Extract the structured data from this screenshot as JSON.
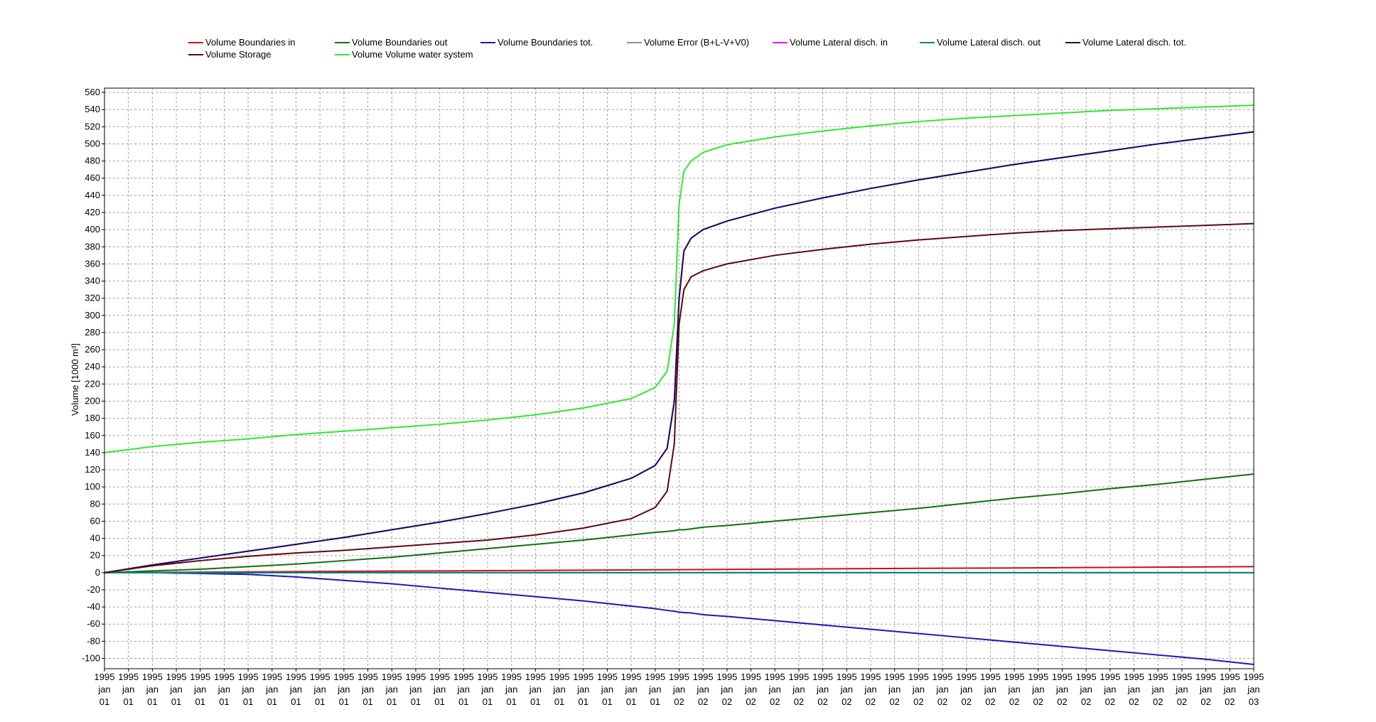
{
  "chart_data": {
    "type": "line",
    "ylabel": "Volume [1000 m³]",
    "grid": true,
    "legend": "top",
    "x": [
      0,
      2,
      4,
      6,
      8,
      10,
      12,
      14,
      16,
      18,
      20,
      22,
      23,
      23.5,
      23.8,
      24,
      24.2,
      24.5,
      25,
      26,
      28,
      30,
      32,
      34,
      36,
      38,
      40,
      42,
      44,
      46,
      48
    ],
    "xlim": [
      0,
      48
    ],
    "xticks": [
      {
        "value": 0,
        "label": [
          "1995",
          "jan",
          "01"
        ]
      },
      {
        "value": 1,
        "label": [
          "1995",
          "jan",
          "01"
        ]
      },
      {
        "value": 2,
        "label": [
          "1995",
          "jan",
          "01"
        ]
      },
      {
        "value": 3,
        "label": [
          "1995",
          "jan",
          "01"
        ]
      },
      {
        "value": 4,
        "label": [
          "1995",
          "jan",
          "01"
        ]
      },
      {
        "value": 5,
        "label": [
          "1995",
          "jan",
          "01"
        ]
      },
      {
        "value": 6,
        "label": [
          "1995",
          "jan",
          "01"
        ]
      },
      {
        "value": 7,
        "label": [
          "1995",
          "jan",
          "01"
        ]
      },
      {
        "value": 8,
        "label": [
          "1995",
          "jan",
          "01"
        ]
      },
      {
        "value": 9,
        "label": [
          "1995",
          "jan",
          "01"
        ]
      },
      {
        "value": 10,
        "label": [
          "1995",
          "jan",
          "01"
        ]
      },
      {
        "value": 11,
        "label": [
          "1995",
          "jan",
          "01"
        ]
      },
      {
        "value": 12,
        "label": [
          "1995",
          "jan",
          "01"
        ]
      },
      {
        "value": 13,
        "label": [
          "1995",
          "jan",
          "01"
        ]
      },
      {
        "value": 14,
        "label": [
          "1995",
          "jan",
          "01"
        ]
      },
      {
        "value": 15,
        "label": [
          "1995",
          "jan",
          "01"
        ]
      },
      {
        "value": 16,
        "label": [
          "1995",
          "jan",
          "01"
        ]
      },
      {
        "value": 17,
        "label": [
          "1995",
          "jan",
          "01"
        ]
      },
      {
        "value": 18,
        "label": [
          "1995",
          "jan",
          "01"
        ]
      },
      {
        "value": 19,
        "label": [
          "1995",
          "jan",
          "01"
        ]
      },
      {
        "value": 20,
        "label": [
          "1995",
          "jan",
          "01"
        ]
      },
      {
        "value": 21,
        "label": [
          "1995",
          "jan",
          "01"
        ]
      },
      {
        "value": 22,
        "label": [
          "1995",
          "jan",
          "01"
        ]
      },
      {
        "value": 23,
        "label": [
          "1995",
          "jan",
          "01"
        ]
      },
      {
        "value": 24,
        "label": [
          "1995",
          "jan",
          "02"
        ]
      },
      {
        "value": 25,
        "label": [
          "1995",
          "jan",
          "02"
        ]
      },
      {
        "value": 26,
        "label": [
          "1995",
          "jan",
          "02"
        ]
      },
      {
        "value": 27,
        "label": [
          "1995",
          "jan",
          "02"
        ]
      },
      {
        "value": 28,
        "label": [
          "1995",
          "jan",
          "02"
        ]
      },
      {
        "value": 29,
        "label": [
          "1995",
          "jan",
          "02"
        ]
      },
      {
        "value": 30,
        "label": [
          "1995",
          "jan",
          "02"
        ]
      },
      {
        "value": 31,
        "label": [
          "1995",
          "jan",
          "02"
        ]
      },
      {
        "value": 32,
        "label": [
          "1995",
          "jan",
          "02"
        ]
      },
      {
        "value": 33,
        "label": [
          "1995",
          "jan",
          "02"
        ]
      },
      {
        "value": 34,
        "label": [
          "1995",
          "jan",
          "02"
        ]
      },
      {
        "value": 35,
        "label": [
          "1995",
          "jan",
          "02"
        ]
      },
      {
        "value": 36,
        "label": [
          "1995",
          "jan",
          "02"
        ]
      },
      {
        "value": 37,
        "label": [
          "1995",
          "jan",
          "02"
        ]
      },
      {
        "value": 38,
        "label": [
          "1995",
          "jan",
          "02"
        ]
      },
      {
        "value": 39,
        "label": [
          "1995",
          "jan",
          "02"
        ]
      },
      {
        "value": 40,
        "label": [
          "1995",
          "jan",
          "02"
        ]
      },
      {
        "value": 41,
        "label": [
          "1995",
          "jan",
          "02"
        ]
      },
      {
        "value": 42,
        "label": [
          "1995",
          "jan",
          "02"
        ]
      },
      {
        "value": 43,
        "label": [
          "1995",
          "jan",
          "02"
        ]
      },
      {
        "value": 44,
        "label": [
          "1995",
          "jan",
          "02"
        ]
      },
      {
        "value": 45,
        "label": [
          "1995",
          "jan",
          "02"
        ]
      },
      {
        "value": 46,
        "label": [
          "1995",
          "jan",
          "02"
        ]
      },
      {
        "value": 47,
        "label": [
          "1995",
          "jan",
          "02"
        ]
      },
      {
        "value": 48,
        "label": [
          "1995",
          "jan",
          "03"
        ]
      }
    ],
    "ylim": [
      -112,
      565
    ],
    "yticks": [
      -100,
      -80,
      -60,
      -40,
      -20,
      0,
      20,
      40,
      60,
      80,
      100,
      120,
      140,
      160,
      180,
      200,
      220,
      240,
      260,
      280,
      300,
      320,
      340,
      360,
      380,
      400,
      420,
      440,
      460,
      480,
      500,
      520,
      540,
      560
    ],
    "series": [
      {
        "name": "Volume Boundaries in",
        "color": "#cc1010",
        "values": [
          0,
          0.3,
          0.6,
          0.9,
          1.2,
          1.5,
          1.8,
          2.0,
          2.3,
          2.6,
          2.9,
          3.2,
          3.4,
          3.4,
          3.5,
          3.5,
          3.5,
          3.6,
          3.6,
          3.8,
          4.1,
          4.4,
          4.7,
          5.0,
          5.2,
          5.5,
          5.8,
          6.1,
          6.4,
          6.7,
          7.0
        ]
      },
      {
        "name": "Volume Boundaries out",
        "color": "#107010",
        "values": [
          0,
          2,
          4,
          7,
          10,
          14,
          18,
          23,
          28,
          33,
          38,
          44,
          47,
          48,
          49,
          50,
          50,
          51,
          53,
          55,
          60,
          65,
          70,
          75,
          81,
          87,
          92,
          98,
          103,
          109,
          115
        ]
      },
      {
        "name": "Volume Boundaries tot.",
        "color": "#1a1ab0",
        "values": [
          0,
          0,
          -1,
          -2,
          -5,
          -9,
          -13,
          -18,
          -23,
          -28,
          -33,
          -39,
          -42,
          -44,
          -45,
          -46,
          -46.5,
          -47,
          -49,
          -51,
          -56,
          -61,
          -66,
          -71,
          -76,
          -81,
          -86,
          -91,
          -96,
          -101,
          -107
        ]
      },
      {
        "name": "Volume Error (B+L-V+V0)",
        "color": "#909090",
        "values": [
          0,
          0,
          0,
          0,
          0,
          0,
          0,
          0,
          0,
          0,
          0,
          0,
          0,
          0,
          0,
          0,
          0,
          0,
          0,
          0,
          0,
          0,
          0,
          0,
          0,
          0,
          0,
          0,
          0,
          0,
          0
        ]
      },
      {
        "name": "Volume Lateral disch. in",
        "color": "#ff00ff",
        "values": [
          0,
          9,
          17,
          25,
          33,
          41,
          50,
          59,
          69,
          80,
          93,
          110,
          125,
          145,
          200,
          320,
          375,
          390,
          400,
          410,
          425,
          437,
          448,
          458,
          467,
          476,
          484,
          492,
          500,
          507,
          514
        ]
      },
      {
        "name": "Volume Lateral disch. out",
        "color": "#008080",
        "values": [
          0,
          0,
          0,
          0,
          0,
          0,
          0,
          0,
          0,
          0,
          0,
          0,
          0,
          0,
          0,
          0,
          0,
          0,
          0,
          0,
          0,
          0,
          0,
          0,
          0,
          0,
          0,
          0,
          0,
          0,
          0
        ]
      },
      {
        "name": "Volume Lateral disch. tot.",
        "color": "#101060",
        "values": [
          0,
          9,
          17,
          25,
          33,
          41,
          50,
          59,
          69,
          80,
          93,
          110,
          125,
          145,
          200,
          320,
          375,
          390,
          400,
          410,
          425,
          437,
          448,
          458,
          467,
          476,
          484,
          492,
          500,
          507,
          514
        ]
      },
      {
        "name": "Volume Storage",
        "color": "#600808",
        "values": [
          0,
          8,
          14,
          19,
          23,
          26,
          30,
          34,
          38,
          44,
          52,
          63,
          76,
          95,
          150,
          290,
          330,
          345,
          352,
          360,
          370,
          377,
          383,
          388,
          392,
          396,
          399,
          401,
          403,
          405,
          407
        ]
      },
      {
        "name": "Volume Volume water system",
        "color": "#33e633",
        "values": [
          140,
          147,
          152,
          156,
          161,
          165,
          169,
          173,
          178,
          184,
          192,
          203,
          216,
          235,
          290,
          430,
          468,
          480,
          490,
          499,
          508,
          515,
          521,
          526,
          530,
          533,
          536,
          539,
          541,
          543,
          545
        ]
      }
    ]
  }
}
